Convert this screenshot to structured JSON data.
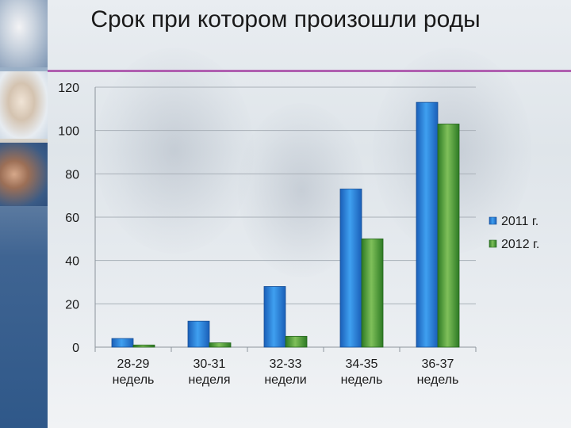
{
  "title": "Срок при котором произошли роды",
  "chart_data": {
    "type": "bar",
    "title": "Срок при котором произошли роды",
    "categories": [
      [
        "28-29",
        "недель"
      ],
      [
        "30-31",
        "неделя"
      ],
      [
        "32-33",
        "недели"
      ],
      [
        "34-35",
        "недель"
      ],
      [
        "36-37",
        "недель"
      ]
    ],
    "series": [
      {
        "name": "2011 г.",
        "values": [
          4,
          12,
          28,
          73,
          113
        ],
        "color": "#1f7fd6"
      },
      {
        "name": "2012 г.",
        "values": [
          1,
          2,
          5,
          50,
          103
        ],
        "color": "#3a8f2e"
      }
    ],
    "ylim": [
      0,
      120
    ],
    "yticks": [
      "0",
      "20",
      "40",
      "60",
      "80",
      "100",
      "120"
    ],
    "grid": true,
    "legend": "right"
  }
}
